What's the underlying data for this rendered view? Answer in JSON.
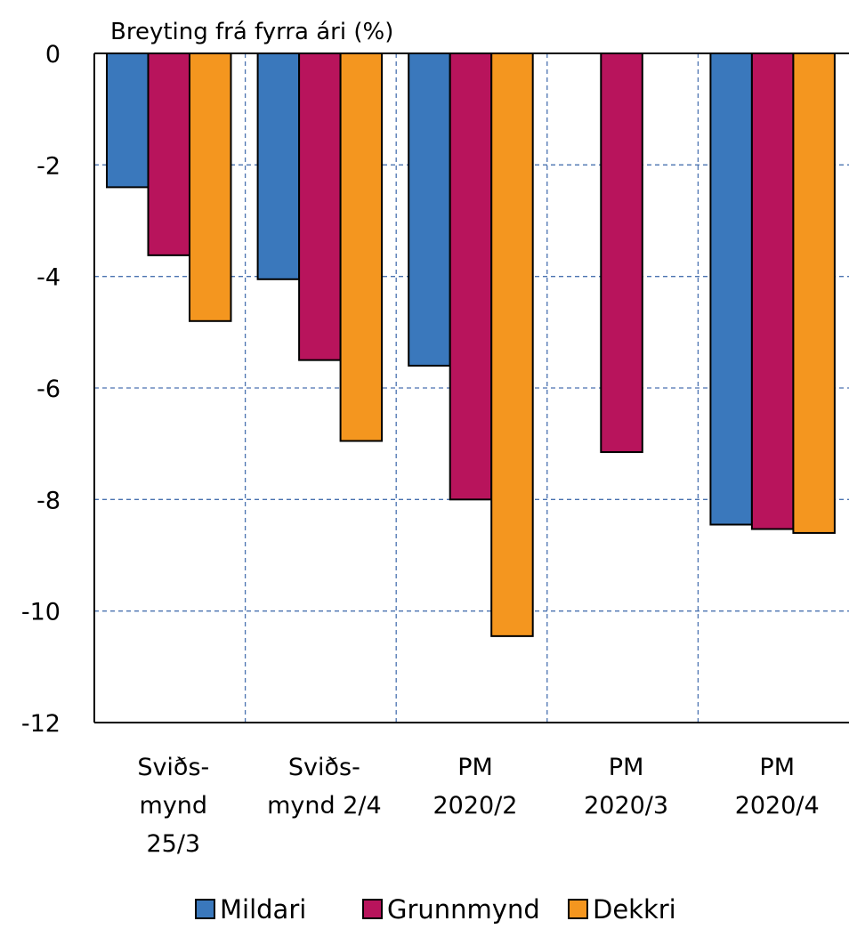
{
  "chart_data": {
    "type": "bar",
    "ylabel": "Breyting frá fyrra ári (%)",
    "ylim": [
      -12,
      0
    ],
    "yticks": [
      0,
      -2,
      -4,
      -6,
      -8,
      -10,
      -12
    ],
    "ytick_labels": [
      "0",
      "-2",
      "-4",
      "-6",
      "-8",
      "-10",
      "-12"
    ],
    "categories": [
      [
        "Sviðs-",
        "mynd",
        "25/3"
      ],
      [
        "Sviðs-",
        "mynd 2/4"
      ],
      [
        "PM",
        "2020/2"
      ],
      [
        "PM",
        "2020/3"
      ],
      [
        "PM",
        "2020/4"
      ]
    ],
    "series": [
      {
        "name": "Mildari",
        "color": "#3A78BC",
        "values": [
          -2.4,
          -4.05,
          -5.6,
          null,
          -8.45
        ]
      },
      {
        "name": "Grunnmynd",
        "color": "#B8145C",
        "values": [
          -3.62,
          -5.5,
          -8.0,
          -7.15,
          -8.53
        ]
      },
      {
        "name": "Dekkri",
        "color": "#F4961F",
        "values": [
          -4.8,
          -6.95,
          -10.45,
          null,
          -8.6
        ]
      }
    ],
    "grid": true,
    "legend_position": "bottom"
  }
}
